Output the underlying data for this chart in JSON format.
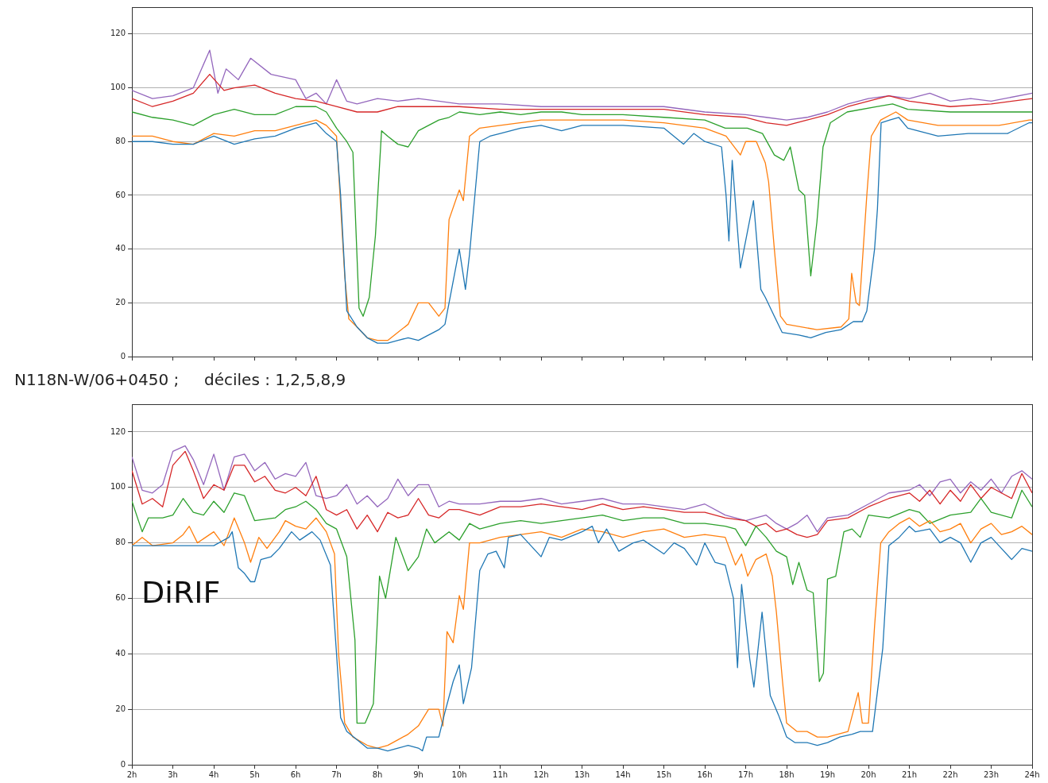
{
  "chart_data": [
    {
      "type": "line",
      "xlim": [
        2,
        24
      ],
      "ylim": [
        0,
        130
      ],
      "yticks": [
        0,
        20,
        40,
        60,
        80,
        100,
        120
      ],
      "grid": "y",
      "legend": false,
      "tick_labels": "y",
      "xticks": [
        {
          "value": 2,
          "label": null
        },
        {
          "value": 3,
          "label": null
        },
        {
          "value": 4,
          "label": null
        },
        {
          "value": 5,
          "label": null
        },
        {
          "value": 6,
          "label": null
        },
        {
          "value": 7,
          "label": null
        },
        {
          "value": 8,
          "label": null
        },
        {
          "value": 9,
          "label": null
        },
        {
          "value": 10,
          "label": null
        },
        {
          "value": 11,
          "label": null
        },
        {
          "value": 12,
          "label": null
        },
        {
          "value": 13,
          "label": null
        },
        {
          "value": 14,
          "label": null
        },
        {
          "value": 15,
          "label": null
        },
        {
          "value": 16,
          "label": null
        },
        {
          "value": 17,
          "label": null
        },
        {
          "value": 18,
          "label": null
        },
        {
          "value": 19,
          "label": null
        },
        {
          "value": 20,
          "label": null
        },
        {
          "value": 21,
          "label": null
        },
        {
          "value": 22,
          "label": null
        },
        {
          "value": 23,
          "label": null
        },
        {
          "value": 24,
          "label": null
        }
      ],
      "series": [
        {
          "color": "#1f77b4",
          "x": [
            2,
            2.5,
            3,
            3.5,
            4,
            4.5,
            5,
            5.5,
            6,
            6.5,
            6.75,
            7,
            7.1,
            7.25,
            7.5,
            7.75,
            8,
            8.25,
            8.5,
            8.75,
            9,
            9.25,
            9.5,
            9.65,
            9.75,
            10,
            10.15,
            10.25,
            10.5,
            10.75,
            11,
            11.5,
            12,
            12.5,
            13,
            14,
            15,
            15.48,
            15.73,
            16,
            16.41,
            16.52,
            16.59,
            16.67,
            16.87,
            17.19,
            17.37,
            17.48,
            17.7,
            17.89,
            18.3,
            18.59,
            18.96,
            19.33,
            19.63,
            19.85,
            19.96,
            20.15,
            20.22,
            20.31,
            20.52,
            20.74,
            20.96,
            21.7,
            22.44,
            23.4,
            23.93,
            24
          ],
          "values": [
            80,
            80,
            79,
            79,
            82,
            79,
            81,
            82,
            85,
            87,
            83,
            80,
            60,
            17,
            11,
            7,
            5,
            5,
            6,
            7,
            6,
            8,
            10,
            12,
            20,
            40,
            25,
            38,
            80,
            82,
            83,
            85,
            86,
            84,
            86,
            86,
            85,
            79,
            83,
            80,
            78,
            60,
            43,
            73,
            33,
            58,
            25,
            22,
            15,
            9,
            8,
            7,
            9,
            10,
            13,
            13,
            17,
            40,
            55,
            87,
            88,
            89,
            85,
            82,
            83,
            83,
            87,
            87
          ]
        },
        {
          "color": "#ff7f0e",
          "x": [
            2,
            2.5,
            3,
            3.5,
            4,
            4.5,
            5,
            5.5,
            6,
            6.5,
            6.75,
            7,
            7.2,
            7.3,
            7.5,
            7.75,
            8,
            8.25,
            8.5,
            8.75,
            9,
            9.25,
            9.5,
            9.65,
            9.75,
            10,
            10.1,
            10.25,
            10.5,
            11,
            12,
            13,
            14,
            15,
            16,
            16.52,
            16.87,
            17,
            17.26,
            17.48,
            17.56,
            17.7,
            17.85,
            18,
            18.74,
            19.33,
            19.52,
            19.59,
            19.7,
            19.78,
            19.96,
            20.07,
            20.3,
            20.67,
            20.96,
            21.7,
            22.44,
            23.19,
            23.93,
            24
          ],
          "values": [
            82,
            82,
            80,
            79,
            83,
            82,
            84,
            84,
            86,
            88,
            86,
            82,
            30,
            14,
            11,
            7,
            6,
            6,
            9,
            12,
            20,
            20,
            15,
            18,
            51,
            62,
            58,
            82,
            85,
            86,
            88,
            88,
            88,
            87,
            85,
            82,
            75,
            80,
            80,
            72,
            65,
            40,
            15,
            12,
            10,
            11,
            14,
            31,
            20,
            19,
            60,
            82,
            88,
            91,
            88,
            86,
            86,
            86,
            88,
            88
          ]
        },
        {
          "color": "#2ca02c",
          "x": [
            2,
            2.5,
            3,
            3.5,
            4,
            4.5,
            5,
            5.5,
            6,
            6.5,
            6.75,
            7,
            7.25,
            7.4,
            7.55,
            7.65,
            7.8,
            7.95,
            8.1,
            8.25,
            8.5,
            8.75,
            9,
            9.25,
            9.5,
            9.75,
            10,
            10.5,
            11,
            11.5,
            12,
            12.5,
            13,
            14,
            15,
            16,
            16.5,
            17.04,
            17.41,
            17.7,
            17.93,
            18.09,
            18.3,
            18.44,
            18.59,
            18.74,
            18.89,
            19.07,
            19.48,
            20.22,
            20.59,
            20.96,
            22,
            23,
            24
          ],
          "values": [
            91,
            89,
            88,
            86,
            90,
            92,
            90,
            90,
            93,
            93,
            91,
            85,
            80,
            76,
            18,
            15,
            22,
            45,
            84,
            82,
            79,
            78,
            84,
            86,
            88,
            89,
            91,
            90,
            91,
            90,
            91,
            91,
            90,
            90,
            89,
            88,
            85,
            85,
            83,
            75,
            73,
            78,
            62,
            60,
            30,
            50,
            78,
            87,
            91,
            93,
            94,
            92,
            91,
            91,
            91
          ]
        },
        {
          "color": "#d62728",
          "x": [
            2,
            2.5,
            3,
            3.5,
            3.9,
            4.25,
            4.5,
            5,
            5.5,
            6,
            6.5,
            7,
            7.5,
            8,
            8.5,
            9,
            9.5,
            10,
            11,
            12,
            13,
            14,
            15,
            16,
            17,
            17.5,
            18,
            18.5,
            19,
            19.5,
            20,
            20.5,
            21,
            22,
            23,
            24
          ],
          "values": [
            96,
            93,
            95,
            98,
            105,
            99,
            100,
            101,
            98,
            96,
            95,
            93,
            91,
            91,
            93,
            93,
            93,
            93,
            92,
            92,
            92,
            92,
            92,
            90,
            89,
            87,
            86,
            88,
            90,
            93,
            95,
            97,
            95,
            93,
            94,
            96
          ]
        },
        {
          "color": "#9467bd",
          "x": [
            2,
            2.5,
            3,
            3.5,
            3.9,
            4.1,
            4.3,
            4.6,
            4.9,
            5.4,
            6,
            6.25,
            6.5,
            6.75,
            7,
            7.25,
            7.5,
            8,
            8.5,
            9,
            9.5,
            10,
            11,
            12,
            13,
            14,
            15,
            16,
            17,
            17.5,
            18,
            18.5,
            19,
            19.5,
            20,
            20.5,
            21,
            21.5,
            22,
            22.5,
            23,
            24
          ],
          "values": [
            99,
            96,
            97,
            100,
            114,
            98,
            107,
            103,
            111,
            105,
            103,
            96,
            98,
            94,
            103,
            95,
            94,
            96,
            95,
            96,
            95,
            94,
            94,
            93,
            93,
            93,
            93,
            91,
            90,
            89,
            88,
            89,
            91,
            94,
            96,
            97,
            96,
            98,
            95,
            96,
            95,
            98
          ]
        }
      ]
    },
    {
      "type": "line",
      "title": "N118N-W/06+0450 ;     déciles : 1,2,5,8,9",
      "annotations": [
        "DiRIF"
      ],
      "xlim": [
        2,
        24
      ],
      "ylim": [
        0,
        130
      ],
      "yticks": [
        0,
        20,
        40,
        60,
        80,
        100,
        120
      ],
      "grid": "y",
      "legend": false,
      "xticks": [
        {
          "value": 2,
          "label": "2h"
        },
        {
          "value": 3,
          "label": "3h"
        },
        {
          "value": 4,
          "label": "4h"
        },
        {
          "value": 5,
          "label": "5h"
        },
        {
          "value": 6,
          "label": "6h"
        },
        {
          "value": 7,
          "label": "7h"
        },
        {
          "value": 8,
          "label": "8h"
        },
        {
          "value": 9,
          "label": "9h"
        },
        {
          "value": 10,
          "label": "10h"
        },
        {
          "value": 11,
          "label": "11h"
        },
        {
          "value": 12,
          "label": "12h"
        },
        {
          "value": 13,
          "label": "13h"
        },
        {
          "value": 14,
          "label": "14h"
        },
        {
          "value": 15,
          "label": "15h"
        },
        {
          "value": 16,
          "label": "16h"
        },
        {
          "value": 17,
          "label": "17h"
        },
        {
          "value": 18,
          "label": "18h"
        },
        {
          "value": 19,
          "label": "19h"
        },
        {
          "value": 20,
          "label": "20h"
        },
        {
          "value": 21,
          "label": "21h"
        },
        {
          "value": 22,
          "label": "22h"
        },
        {
          "value": 23,
          "label": "23h"
        },
        {
          "value": 24,
          "label": "24h"
        }
      ],
      "series": [
        {
          "color": "#1f77b4",
          "x": [
            2,
            3,
            4,
            4.37,
            4.45,
            4.6,
            4.75,
            4.9,
            5,
            5.15,
            5.4,
            5.6,
            5.9,
            6.1,
            6.4,
            6.6,
            6.85,
            7,
            7.1,
            7.25,
            7.5,
            7.75,
            8,
            8.25,
            8.5,
            8.75,
            9,
            9.1,
            9.2,
            9.5,
            9.65,
            9.85,
            10,
            10.1,
            10.3,
            10.5,
            10.7,
            10.9,
            11.1,
            11.2,
            11.5,
            12,
            12.2,
            12.5,
            13,
            13.25,
            13.4,
            13.6,
            13.9,
            14.25,
            14.5,
            15,
            15.25,
            15.5,
            15.8,
            16,
            16.25,
            16.5,
            16.7,
            16.8,
            16.9,
            17.1,
            17.2,
            17.4,
            17.6,
            17.8,
            18,
            18.2,
            18.5,
            18.75,
            19,
            19.3,
            19.6,
            19.8,
            20.1,
            20.35,
            20.5,
            20.75,
            21,
            21.15,
            21.5,
            21.75,
            22,
            22.25,
            22.5,
            22.75,
            23,
            23.25,
            23.5,
            23.75,
            24
          ],
          "values": [
            79,
            79,
            79,
            82,
            84,
            71,
            69,
            66,
            66,
            74,
            75,
            78,
            84,
            81,
            84,
            81,
            72,
            40,
            17,
            12,
            9,
            6,
            6,
            5,
            6,
            7,
            6,
            5,
            10,
            10,
            19,
            30,
            36,
            22,
            35,
            70,
            76,
            77,
            71,
            82,
            83,
            75,
            82,
            81,
            84,
            86,
            80,
            85,
            77,
            80,
            81,
            76,
            80,
            78,
            72,
            80,
            73,
            72,
            60,
            35,
            65,
            38,
            28,
            55,
            25,
            18,
            10,
            8,
            8,
            7,
            8,
            10,
            11,
            12,
            12,
            42,
            79,
            82,
            86,
            84,
            85,
            80,
            82,
            80,
            73,
            80,
            82,
            78,
            74,
            78,
            77
          ]
        },
        {
          "color": "#ff7f0e",
          "x": [
            2,
            2.25,
            2.5,
            3,
            3.25,
            3.4,
            3.6,
            4,
            4.25,
            4.5,
            4.75,
            4.9,
            5.1,
            5.3,
            5.6,
            5.75,
            6,
            6.25,
            6.5,
            6.75,
            6.95,
            7.05,
            7.2,
            7.4,
            7.75,
            8,
            8.25,
            8.5,
            8.75,
            9,
            9.25,
            9.5,
            9.6,
            9.7,
            9.85,
            10,
            10.1,
            10.25,
            10.5,
            11,
            11.5,
            12,
            12.5,
            13,
            13.5,
            14,
            14.5,
            15,
            15.5,
            16,
            16.5,
            16.75,
            16.9,
            17.05,
            17.25,
            17.5,
            17.65,
            17.75,
            17.9,
            18,
            18.25,
            18.5,
            18.75,
            19,
            19.25,
            19.5,
            19.75,
            19.85,
            20,
            20.15,
            20.3,
            20.5,
            20.75,
            21,
            21.25,
            21.5,
            21.75,
            22,
            22.25,
            22.5,
            22.75,
            23,
            23.25,
            23.5,
            23.75,
            24
          ],
          "values": [
            79,
            82,
            79,
            80,
            83,
            86,
            80,
            84,
            79,
            89,
            80,
            73,
            82,
            78,
            84,
            88,
            86,
            85,
            89,
            84,
            76,
            40,
            15,
            10,
            7,
            6,
            7,
            9,
            11,
            14,
            20,
            20,
            14,
            48,
            44,
            61,
            56,
            80,
            80,
            82,
            83,
            84,
            82,
            85,
            84,
            82,
            84,
            85,
            82,
            83,
            82,
            72,
            76,
            68,
            74,
            76,
            68,
            55,
            30,
            15,
            12,
            12,
            10,
            10,
            11,
            12,
            26,
            15,
            15,
            50,
            80,
            84,
            87,
            89,
            86,
            88,
            84,
            85,
            87,
            80,
            85,
            87,
            83,
            84,
            86,
            83
          ]
        },
        {
          "color": "#2ca02c",
          "x": [
            2,
            2.25,
            2.4,
            2.75,
            3,
            3.25,
            3.5,
            3.75,
            4,
            4.25,
            4.5,
            4.75,
            5,
            5.5,
            5.75,
            6,
            6.25,
            6.5,
            6.75,
            7,
            7.25,
            7.45,
            7.5,
            7.7,
            7.9,
            8.05,
            8.2,
            8.45,
            8.75,
            9,
            9.2,
            9.4,
            9.75,
            10,
            10.25,
            10.5,
            11,
            11.5,
            12,
            12.5,
            13,
            13.5,
            14,
            14.5,
            15,
            15.5,
            16,
            16.5,
            16.75,
            17,
            17.25,
            17.5,
            17.75,
            18,
            18.15,
            18.3,
            18.5,
            18.65,
            18.8,
            18.9,
            19,
            19.2,
            19.4,
            19.6,
            19.8,
            20,
            20.5,
            21,
            21.25,
            21.5,
            22,
            22.5,
            22.75,
            23,
            23.5,
            23.75,
            24
          ],
          "values": [
            95,
            84,
            89,
            89,
            90,
            96,
            91,
            90,
            95,
            91,
            98,
            97,
            88,
            89,
            92,
            93,
            95,
            92,
            87,
            85,
            75,
            45,
            15,
            15,
            22,
            68,
            60,
            82,
            70,
            75,
            85,
            80,
            84,
            81,
            87,
            85,
            87,
            88,
            87,
            88,
            89,
            90,
            88,
            89,
            89,
            87,
            87,
            86,
            85,
            79,
            86,
            82,
            77,
            75,
            65,
            73,
            63,
            62,
            30,
            33,
            67,
            68,
            84,
            85,
            82,
            90,
            89,
            92,
            91,
            87,
            90,
            91,
            96,
            91,
            89,
            99,
            93
          ]
        },
        {
          "color": "#d62728",
          "x": [
            2,
            2.25,
            2.5,
            2.75,
            3,
            3.3,
            3.5,
            3.75,
            4,
            4.25,
            4.5,
            4.75,
            5,
            5.25,
            5.5,
            5.75,
            6,
            6.25,
            6.5,
            6.75,
            7,
            7.25,
            7.5,
            7.75,
            8,
            8.25,
            8.5,
            8.75,
            9,
            9.25,
            9.5,
            9.75,
            10,
            10.5,
            11,
            11.5,
            12,
            12.5,
            13,
            13.5,
            14,
            14.5,
            15,
            15.5,
            16,
            16.5,
            17,
            17.25,
            17.5,
            17.75,
            18,
            18.25,
            18.5,
            18.75,
            19,
            19.5,
            20,
            20.5,
            21,
            21.25,
            21.5,
            21.75,
            22,
            22.25,
            22.5,
            22.75,
            23,
            23.25,
            23.5,
            23.75,
            24
          ],
          "values": [
            106,
            94,
            96,
            93,
            108,
            113,
            106,
            96,
            101,
            99,
            108,
            108,
            102,
            104,
            99,
            98,
            100,
            97,
            104,
            92,
            90,
            92,
            85,
            90,
            84,
            91,
            89,
            90,
            96,
            90,
            89,
            92,
            92,
            90,
            93,
            93,
            94,
            93,
            92,
            94,
            92,
            93,
            92,
            91,
            91,
            89,
            88,
            86,
            87,
            84,
            85,
            83,
            82,
            83,
            88,
            89,
            93,
            96,
            98,
            95,
            99,
            94,
            99,
            95,
            101,
            96,
            100,
            98,
            96,
            105,
            98
          ]
        },
        {
          "color": "#9467bd",
          "x": [
            2,
            2.25,
            2.5,
            2.75,
            3,
            3.3,
            3.5,
            3.75,
            4,
            4.25,
            4.5,
            4.75,
            5,
            5.25,
            5.5,
            5.75,
            6,
            6.25,
            6.5,
            6.75,
            7,
            7.25,
            7.5,
            7.75,
            8,
            8.25,
            8.5,
            8.75,
            9,
            9.25,
            9.5,
            9.75,
            10,
            10.5,
            11,
            11.5,
            12,
            12.5,
            13,
            13.5,
            14,
            14.5,
            15,
            15.5,
            16,
            16.5,
            17,
            17.25,
            17.5,
            17.75,
            18,
            18.25,
            18.5,
            18.75,
            19,
            19.5,
            20,
            20.5,
            21,
            21.25,
            21.5,
            21.75,
            22,
            22.25,
            22.5,
            22.75,
            23,
            23.25,
            23.5,
            23.75,
            24
          ],
          "values": [
            111,
            99,
            98,
            101,
            113,
            115,
            110,
            101,
            112,
            99,
            111,
            112,
            106,
            109,
            103,
            105,
            104,
            109,
            97,
            96,
            97,
            101,
            94,
            97,
            93,
            96,
            103,
            97,
            101,
            101,
            93,
            95,
            94,
            94,
            95,
            95,
            96,
            94,
            95,
            96,
            94,
            94,
            93,
            92,
            94,
            90,
            88,
            89,
            90,
            87,
            85,
            87,
            90,
            84,
            89,
            90,
            94,
            98,
            99,
            101,
            97,
            102,
            103,
            98,
            102,
            99,
            103,
            98,
            104,
            106,
            103
          ]
        }
      ]
    }
  ]
}
